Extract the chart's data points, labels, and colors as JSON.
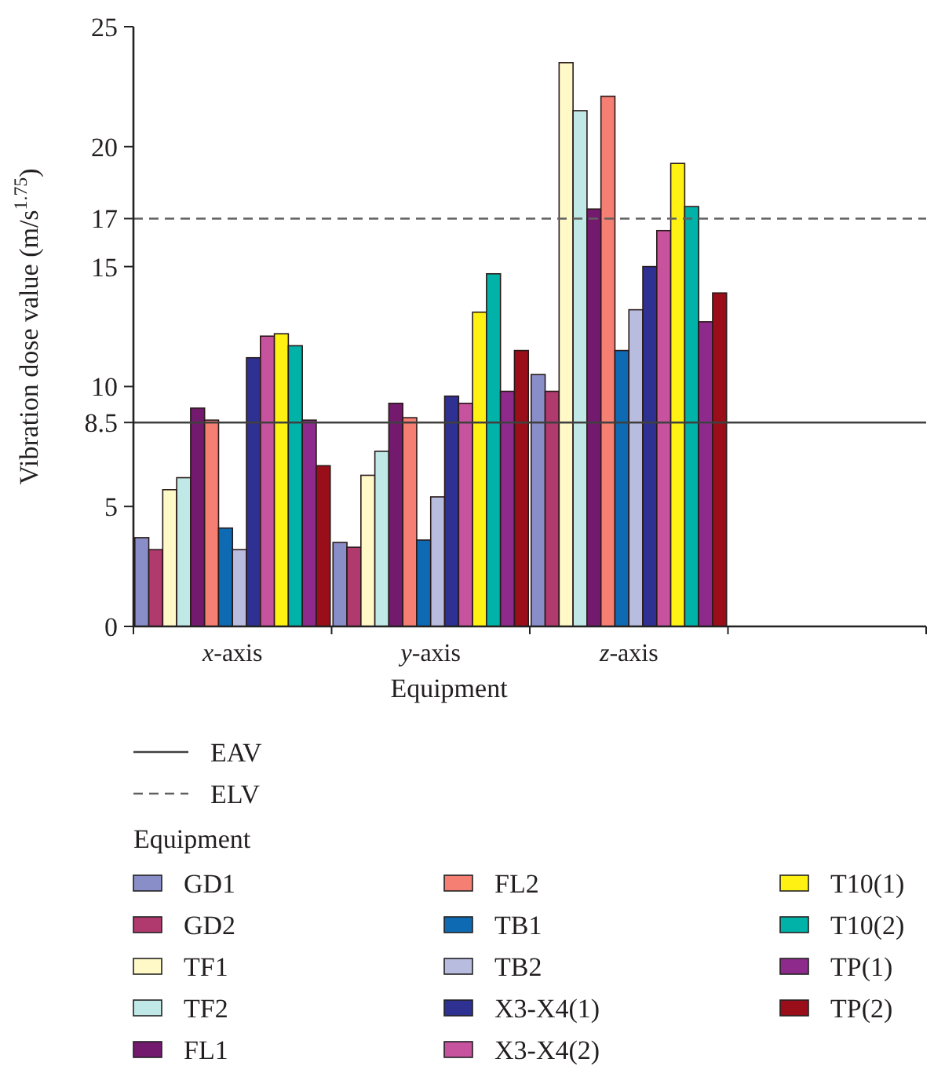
{
  "chart_data": {
    "type": "bar",
    "xlabel": "Equipment",
    "ylabel": "Vibration dose value (m/s$^{1.75}$)",
    "categories": [
      "x-axis",
      "y-axis",
      "z-axis",
      null
    ],
    "ylim": [
      0,
      25
    ],
    "yticks": [
      0,
      5,
      8.5,
      10,
      15,
      17,
      20,
      25
    ],
    "grid": false,
    "legend": "bottom",
    "legend_title": "Equipment",
    "series": [
      {
        "name": "GD1",
        "color": "#8a8ec8",
        "values": [
          3.7,
          3.5,
          10.5,
          null
        ]
      },
      {
        "name": "GD2",
        "color": "#b03a6e",
        "values": [
          3.2,
          3.3,
          9.8,
          null
        ]
      },
      {
        "name": "TF1",
        "color": "#fff9c8",
        "values": [
          5.7,
          6.3,
          23.5,
          null
        ]
      },
      {
        "name": "TF2",
        "color": "#c0e8e6",
        "values": [
          6.2,
          7.3,
          21.5,
          null
        ]
      },
      {
        "name": "FL1",
        "color": "#741a6e",
        "values": [
          9.1,
          9.3,
          17.4,
          null
        ]
      },
      {
        "name": "FL2",
        "color": "#f47f72",
        "values": [
          8.6,
          8.7,
          22.1,
          null
        ]
      },
      {
        "name": "TB1",
        "color": "#0f6ab4",
        "values": [
          4.1,
          3.6,
          11.5,
          null
        ]
      },
      {
        "name": "TB2",
        "color": "#b8bde0",
        "values": [
          3.2,
          5.4,
          13.2,
          null
        ]
      },
      {
        "name": "X3-X4(1)",
        "color": "#2e3192",
        "values": [
          11.2,
          9.6,
          15.0,
          null
        ]
      },
      {
        "name": "X3-X4(2)",
        "color": "#c7529e",
        "values": [
          12.1,
          9.3,
          16.5,
          null
        ]
      },
      {
        "name": "T10(1)",
        "color": "#fff212",
        "values": [
          12.2,
          13.1,
          19.3,
          null
        ]
      },
      {
        "name": "T10(2)",
        "color": "#00b2a8",
        "values": [
          11.7,
          14.7,
          17.5,
          null
        ]
      },
      {
        "name": "TP(1)",
        "color": "#8e2a8c",
        "values": [
          8.6,
          9.8,
          12.7,
          null
        ]
      },
      {
        "name": "TP(2)",
        "color": "#9a0e1a",
        "values": [
          6.7,
          11.5,
          13.9,
          null
        ]
      }
    ],
    "ref_lines": [
      {
        "axis": "y",
        "value": 8.5,
        "label": "EAV",
        "line_style": "solid",
        "color": "#404040"
      },
      {
        "axis": "y",
        "value": 17,
        "label": "ELV",
        "line_style": "dashed",
        "color": "#606060"
      }
    ]
  }
}
